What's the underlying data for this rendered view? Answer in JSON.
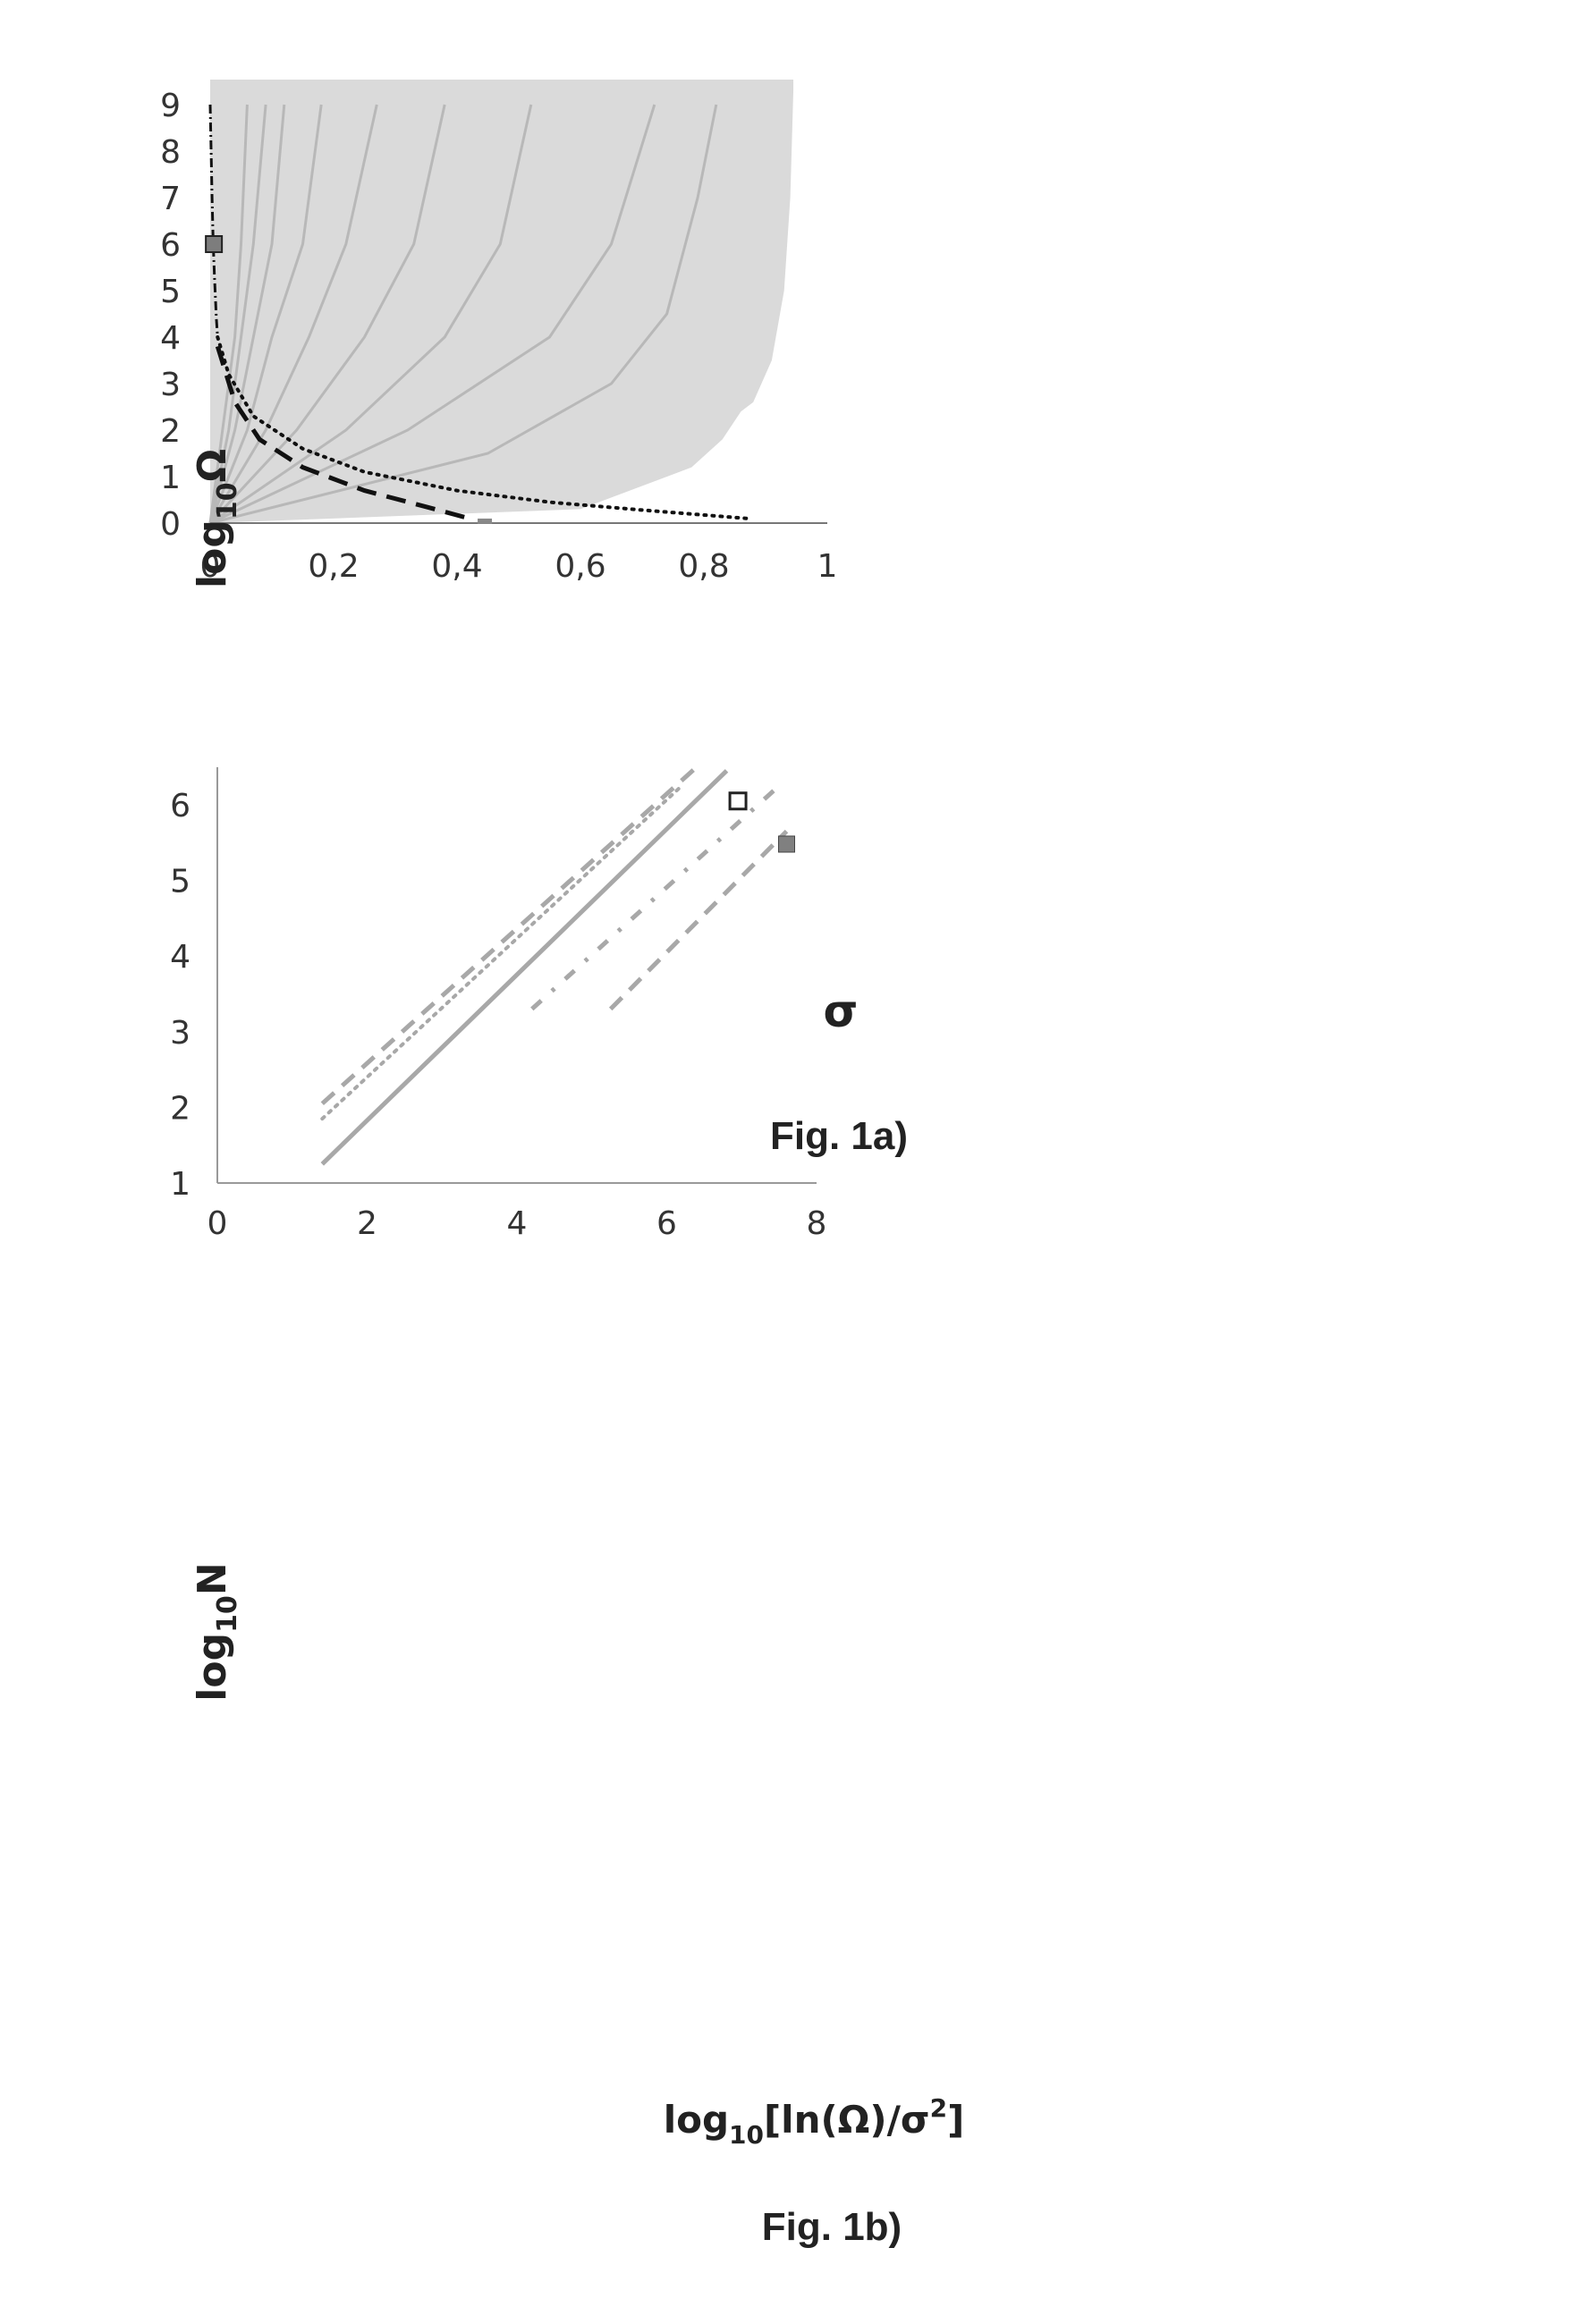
{
  "chart_data": [
    {
      "type": "line",
      "caption": "Fig. 1a)",
      "xlabel": "σ",
      "ylabel": {
        "base": "log",
        "sub": "10",
        "rest": "Ω"
      },
      "xlim": [
        0,
        1
      ],
      "ylim": [
        0,
        9
      ],
      "x_ticks": [
        "0",
        "0,2",
        "0,4",
        "0,6",
        "0,8",
        "1"
      ],
      "y_ticks": [
        "0",
        "1",
        "2",
        "3",
        "4",
        "5",
        "6",
        "7",
        "8",
        "9"
      ],
      "shaded_region": {
        "boundary": [
          [
            0.0,
            0.0
          ],
          [
            0.6,
            0.3
          ],
          [
            0.72,
            0.9
          ],
          [
            0.78,
            1.2
          ],
          [
            0.83,
            1.8
          ],
          [
            0.86,
            2.4
          ],
          [
            0.88,
            2.6
          ],
          [
            0.91,
            3.5
          ],
          [
            0.93,
            5.0
          ],
          [
            0.94,
            7.0
          ],
          [
            0.945,
            9.3
          ]
        ]
      },
      "grey_curves": [
        {
          "points": [
            [
              0,
              0
            ],
            [
              0.02,
              2
            ],
            [
              0.04,
              4
            ],
            [
              0.05,
              6
            ],
            [
              0.06,
              9
            ]
          ]
        },
        {
          "points": [
            [
              0,
              0
            ],
            [
              0.03,
              2
            ],
            [
              0.05,
              4
            ],
            [
              0.07,
              6
            ],
            [
              0.09,
              9
            ]
          ]
        },
        {
          "points": [
            [
              0,
              0
            ],
            [
              0.04,
              2
            ],
            [
              0.07,
              4
            ],
            [
              0.1,
              6
            ],
            [
              0.12,
              9
            ]
          ]
        },
        {
          "points": [
            [
              0,
              0
            ],
            [
              0.06,
              2
            ],
            [
              0.1,
              4
            ],
            [
              0.15,
              6
            ],
            [
              0.18,
              9
            ]
          ]
        },
        {
          "points": [
            [
              0,
              0
            ],
            [
              0.09,
              2
            ],
            [
              0.16,
              4
            ],
            [
              0.22,
              6
            ],
            [
              0.27,
              9
            ]
          ]
        },
        {
          "points": [
            [
              0,
              0
            ],
            [
              0.14,
              2
            ],
            [
              0.25,
              4
            ],
            [
              0.33,
              6
            ],
            [
              0.38,
              9
            ]
          ]
        },
        {
          "points": [
            [
              0,
              0
            ],
            [
              0.22,
              2
            ],
            [
              0.38,
              4
            ],
            [
              0.47,
              6
            ],
            [
              0.52,
              9
            ]
          ]
        },
        {
          "points": [
            [
              0,
              0
            ],
            [
              0.32,
              2
            ],
            [
              0.55,
              4
            ],
            [
              0.65,
              6
            ],
            [
              0.72,
              9
            ]
          ]
        },
        {
          "points": [
            [
              0,
              0
            ],
            [
              0.45,
              1.5
            ],
            [
              0.65,
              3
            ],
            [
              0.74,
              4.5
            ],
            [
              0.79,
              7
            ],
            [
              0.82,
              9
            ]
          ]
        }
      ],
      "dash_dot_curve": {
        "points": [
          [
            0.0,
            9.0
          ],
          [
            0.003,
            7.0
          ],
          [
            0.005,
            6.0
          ],
          [
            0.007,
            5.3
          ],
          [
            0.01,
            4.4
          ],
          [
            0.012,
            4.0
          ]
        ]
      },
      "dotted_curve": {
        "points": [
          [
            0.012,
            4.0
          ],
          [
            0.03,
            3.2
          ],
          [
            0.07,
            2.3
          ],
          [
            0.15,
            1.6
          ],
          [
            0.25,
            1.1
          ],
          [
            0.4,
            0.7
          ],
          [
            0.55,
            0.45
          ],
          [
            0.7,
            0.28
          ],
          [
            0.87,
            0.1
          ]
        ]
      },
      "dashed_curve": {
        "points": [
          [
            0.012,
            3.8
          ],
          [
            0.04,
            2.6
          ],
          [
            0.08,
            1.8
          ],
          [
            0.15,
            1.2
          ],
          [
            0.25,
            0.7
          ],
          [
            0.35,
            0.35
          ],
          [
            0.42,
            0.1
          ]
        ]
      },
      "small_mark": {
        "x": 0.445,
        "y": 0.04
      },
      "marker_filled": {
        "x": 0.006,
        "y": 6.0,
        "color": "#7d7d7d"
      },
      "colors": {
        "shade": "#dadada",
        "grey_line": "#b8b8b8",
        "black": "#111111"
      }
    },
    {
      "type": "line",
      "caption": "Fig. 1b)",
      "xlabel": {
        "pre": "log",
        "sub": "10",
        "mid": "[ln(Ω)/σ",
        "sup": "2",
        "post": "]"
      },
      "ylabel": {
        "base": "log",
        "sub": "10",
        "rest": "N"
      },
      "xlim": [
        0,
        8
      ],
      "ylim": [
        1,
        6.5
      ],
      "x_ticks": [
        "0",
        "2",
        "4",
        "6",
        "8"
      ],
      "y_ticks": [
        "1",
        "2",
        "3",
        "4",
        "5",
        "6"
      ],
      "series": [
        {
          "style": "dash",
          "points": [
            [
              1.4,
              2.05
            ],
            [
              6.4,
              6.5
            ]
          ]
        },
        {
          "style": "dot",
          "points": [
            [
              1.4,
              1.85
            ],
            [
              6.2,
              6.25
            ]
          ]
        },
        {
          "style": "solid",
          "points": [
            [
              1.4,
              1.25
            ],
            [
              6.8,
              6.45
            ]
          ]
        },
        {
          "style": "dash-dot",
          "points": [
            [
              4.2,
              3.3
            ],
            [
              7.5,
              6.25
            ]
          ]
        },
        {
          "style": "dash",
          "points": [
            [
              5.25,
              3.3
            ],
            [
              7.6,
              5.65
            ]
          ]
        }
      ],
      "marker_open": {
        "x": 6.95,
        "y": 6.05
      },
      "marker_filled": {
        "x": 7.6,
        "y": 5.48,
        "color": "#808080"
      },
      "colors": {
        "line": "#a8a8a8"
      }
    }
  ]
}
